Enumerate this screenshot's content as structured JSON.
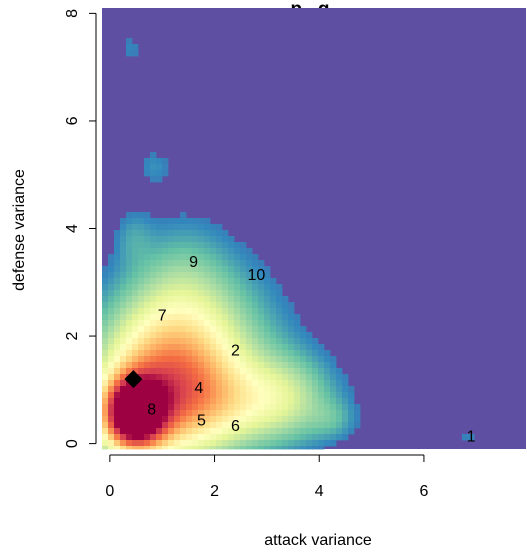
{
  "chart_data": {
    "type": "heatmap",
    "title": "...p...g...",
    "xlabel": "attack variance",
    "ylabel": "defense variance",
    "xlim": [
      -0.15,
      7.95
    ],
    "ylim": [
      -0.1,
      8.1
    ],
    "x_ticks": [
      0,
      2,
      4,
      6
    ],
    "y_ticks": [
      0,
      2,
      4,
      6,
      8
    ],
    "x_tick_labels": [
      "0",
      "2",
      "4",
      "6"
    ],
    "y_tick_labels": [
      "0",
      "2",
      "4",
      "6",
      "8"
    ],
    "background_color": "#5e4fa2",
    "colormap": "spectral",
    "density_peak": {
      "x": 0.45,
      "y": 0.55
    },
    "points": [
      {
        "label": "1",
        "x": 6.9,
        "y": 0.15
      },
      {
        "label": "2",
        "x": 2.4,
        "y": 1.75
      },
      {
        "label": "4",
        "x": 1.7,
        "y": 1.05
      },
      {
        "label": "5",
        "x": 1.75,
        "y": 0.45
      },
      {
        "label": "6",
        "x": 2.4,
        "y": 0.35
      },
      {
        "label": "7",
        "x": 1.0,
        "y": 2.4
      },
      {
        "label": "8",
        "x": 0.8,
        "y": 0.65
      },
      {
        "label": "9",
        "x": 1.6,
        "y": 3.4
      },
      {
        "label": "10",
        "x": 2.8,
        "y": 3.15
      }
    ],
    "marker": {
      "shape": "diamond",
      "x": 0.45,
      "y": 1.2,
      "color": "#000000"
    }
  }
}
